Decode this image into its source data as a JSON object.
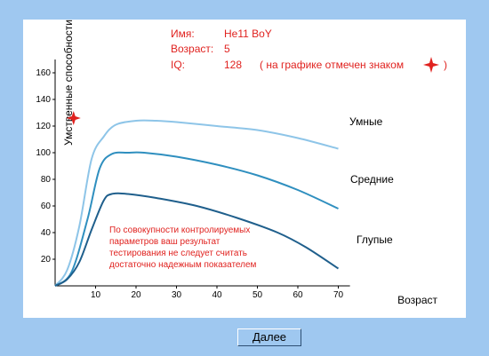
{
  "info": {
    "name_label": "Имя:",
    "name_value": "He11 BoY",
    "age_label": "Возраст:",
    "age_value": "5",
    "iq_label": "IQ:",
    "iq_value": "128",
    "iq_note_open": "( на графике отмечен знаком",
    "iq_note_close": ")"
  },
  "note_lines": [
    "По совокупности контролируемых",
    "параметров ваш результат",
    "тестирования не следует считать",
    "достаточно надежным показателем"
  ],
  "next_button": {
    "label": "Далее"
  },
  "chart_data": {
    "type": "line",
    "xlabel": "Возраст",
    "ylabel": "Умственные способности",
    "xlim": [
      0,
      72
    ],
    "ylim": [
      0,
      170
    ],
    "x_ticks": [
      10,
      20,
      30,
      40,
      50,
      60,
      70
    ],
    "y_ticks": [
      20,
      40,
      60,
      80,
      100,
      120,
      140,
      160
    ],
    "grid": false,
    "series": [
      {
        "name": "Умные",
        "color": "#8ec5e8",
        "points": [
          [
            0,
            0
          ],
          [
            3,
            12
          ],
          [
            6,
            45
          ],
          [
            9,
            95
          ],
          [
            12,
            112
          ],
          [
            15,
            121
          ],
          [
            20,
            124
          ],
          [
            25,
            124
          ],
          [
            30,
            123
          ],
          [
            40,
            120
          ],
          [
            50,
            117
          ],
          [
            60,
            111
          ],
          [
            70,
            103
          ]
        ]
      },
      {
        "name": "Средние",
        "color": "#2f8fbf",
        "points": [
          [
            0,
            0
          ],
          [
            4,
            10
          ],
          [
            8,
            50
          ],
          [
            11,
            88
          ],
          [
            14,
            99
          ],
          [
            18,
            100
          ],
          [
            22,
            100
          ],
          [
            30,
            97
          ],
          [
            40,
            91
          ],
          [
            50,
            83
          ],
          [
            60,
            72
          ],
          [
            70,
            58
          ]
        ]
      },
      {
        "name": "Глупые",
        "color": "#1f5f8c",
        "points": [
          [
            0,
            0
          ],
          [
            3,
            5
          ],
          [
            6,
            18
          ],
          [
            9,
            42
          ],
          [
            12,
            64
          ],
          [
            14,
            69
          ],
          [
            18,
            69
          ],
          [
            25,
            66
          ],
          [
            35,
            60
          ],
          [
            45,
            51
          ],
          [
            55,
            40
          ],
          [
            62,
            29
          ],
          [
            70,
            13
          ]
        ]
      }
    ],
    "marker": {
      "x": 5,
      "y": 128,
      "color": "#e0221f",
      "shape": "four-point-star"
    }
  }
}
